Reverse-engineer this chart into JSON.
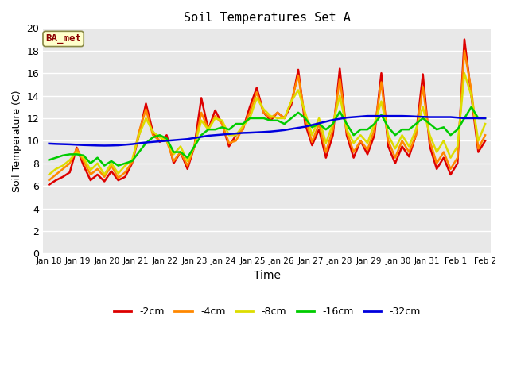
{
  "title": "Soil Temperatures Set A",
  "xlabel": "Time",
  "ylabel": "Soil Temperature (C)",
  "annotation": "BA_met",
  "ylim": [
    0,
    20
  ],
  "background_color": "#e8e8e8",
  "line_colors": {
    "-2cm": "#dd0000",
    "-4cm": "#ff8800",
    "-8cm": "#dddd00",
    "-16cm": "#00cc00",
    "-32cm": "#0000dd"
  },
  "xtick_labels": [
    "Jan 18",
    "Jan 19",
    "Jan 20",
    "Jan 21",
    "Jan 22",
    "Jan 23",
    "Jan 24",
    "Jan 25",
    "Jan 26",
    "Jan 27",
    "Jan 28",
    "Jan 29",
    "Jan 30",
    "Jan 31",
    "Feb 1",
    "Feb 2"
  ],
  "series_2cm": [
    6.1,
    6.5,
    6.8,
    7.2,
    9.4,
    7.8,
    6.5,
    7.0,
    6.4,
    7.3,
    6.5,
    6.8,
    8.0,
    10.5,
    13.3,
    10.8,
    9.9,
    10.5,
    8.0,
    9.0,
    7.5,
    9.5,
    13.8,
    11.0,
    12.7,
    11.5,
    9.5,
    10.5,
    11.0,
    13.0,
    14.7,
    12.5,
    11.8,
    12.5,
    12.0,
    13.2,
    16.3,
    11.5,
    9.6,
    11.0,
    8.5,
    10.5,
    16.4,
    10.5,
    8.5,
    10.0,
    8.8,
    10.5,
    16.0,
    9.5,
    8.0,
    9.5,
    8.6,
    10.5,
    15.9,
    9.5,
    7.5,
    8.5,
    7.0,
    8.0,
    19.0,
    14.0,
    9.0,
    10.0
  ],
  "series_4cm": [
    6.5,
    7.0,
    7.5,
    8.0,
    9.3,
    8.2,
    7.0,
    7.5,
    6.8,
    7.8,
    6.7,
    7.2,
    8.1,
    10.8,
    12.8,
    10.5,
    10.0,
    10.0,
    8.2,
    9.0,
    7.8,
    9.5,
    12.5,
    11.0,
    12.2,
    11.5,
    9.8,
    10.0,
    11.1,
    12.5,
    14.3,
    12.5,
    12.0,
    12.5,
    12.0,
    13.5,
    15.8,
    12.0,
    9.9,
    11.5,
    9.0,
    11.0,
    15.5,
    10.8,
    9.0,
    10.0,
    9.2,
    11.0,
    15.2,
    10.0,
    8.5,
    10.0,
    9.0,
    10.5,
    14.8,
    10.0,
    8.0,
    9.0,
    7.5,
    8.5,
    18.0,
    14.5,
    9.3,
    10.5
  ],
  "series_8cm": [
    7.0,
    7.5,
    7.8,
    8.3,
    9.0,
    8.5,
    7.4,
    8.0,
    7.0,
    8.0,
    7.1,
    7.8,
    8.3,
    10.5,
    12.0,
    10.8,
    10.3,
    10.0,
    8.8,
    9.5,
    8.2,
    9.5,
    11.8,
    11.0,
    12.0,
    11.8,
    10.5,
    10.5,
    11.3,
    12.0,
    13.8,
    12.8,
    12.2,
    12.0,
    12.0,
    13.5,
    14.5,
    12.5,
    10.5,
    12.0,
    9.8,
    11.5,
    14.0,
    11.0,
    9.8,
    10.5,
    9.8,
    11.5,
    13.5,
    10.5,
    9.3,
    10.5,
    9.5,
    11.0,
    13.0,
    10.5,
    9.0,
    10.0,
    8.5,
    9.5,
    16.0,
    14.0,
    10.0,
    11.5
  ],
  "series_16cm": [
    8.3,
    8.5,
    8.7,
    8.8,
    8.8,
    8.7,
    8.0,
    8.5,
    7.8,
    8.2,
    7.8,
    8.0,
    8.2,
    9.0,
    9.8,
    10.3,
    10.5,
    10.2,
    9.0,
    9.0,
    8.5,
    9.5,
    10.5,
    11.0,
    11.0,
    11.2,
    11.0,
    11.5,
    11.5,
    12.0,
    12.0,
    12.0,
    11.8,
    11.8,
    11.5,
    12.0,
    12.5,
    12.0,
    11.2,
    11.5,
    11.0,
    11.5,
    12.6,
    11.5,
    10.5,
    11.0,
    11.0,
    11.5,
    12.3,
    11.2,
    10.5,
    11.0,
    11.0,
    11.5,
    12.0,
    11.5,
    11.0,
    11.2,
    10.5,
    11.0,
    12.0,
    13.0,
    12.0,
    12.0
  ],
  "series_32cm": [
    9.75,
    9.72,
    9.7,
    9.68,
    9.65,
    9.62,
    9.6,
    9.58,
    9.57,
    9.58,
    9.6,
    9.65,
    9.7,
    9.78,
    9.85,
    9.9,
    9.95,
    10.0,
    10.05,
    10.1,
    10.15,
    10.25,
    10.35,
    10.45,
    10.5,
    10.55,
    10.6,
    10.65,
    10.7,
    10.72,
    10.75,
    10.78,
    10.82,
    10.88,
    10.95,
    11.05,
    11.15,
    11.25,
    11.4,
    11.55,
    11.7,
    11.85,
    11.95,
    12.05,
    12.1,
    12.15,
    12.2,
    12.2,
    12.2,
    12.2,
    12.2,
    12.2,
    12.18,
    12.15,
    12.12,
    12.1,
    12.1,
    12.1,
    12.1,
    12.05,
    12.0,
    12.0,
    12.0,
    12.0
  ]
}
